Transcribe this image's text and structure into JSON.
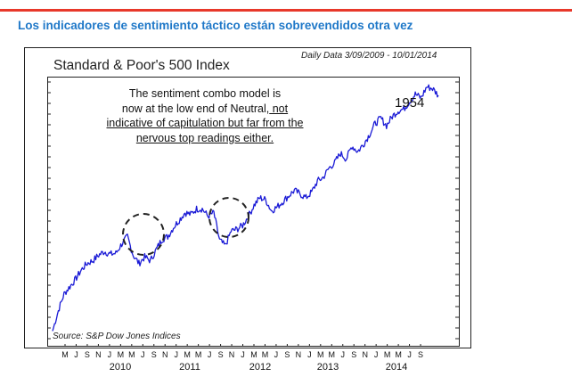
{
  "slide": {
    "title": "Los indicadores de sentimiento táctico están sobrevendidos otra vez"
  },
  "colors": {
    "accent_red": "#e8382a",
    "title_blue": "#1f78c8",
    "series_blue": "#1a1ad6"
  },
  "chart_data": {
    "type": "line",
    "title": "Standard & Poor's 500 Index",
    "subtitle": "Daily Data 3/09/2009 - 10/01/2014",
    "source": "Source: S&P Dow Jones Indices",
    "annotation": {
      "line1": "The sentiment combo model is",
      "line2_plain": "now at the low end of Neutral,",
      "line2_underlined": " not",
      "line3": "indicative of capitulation but far from the",
      "line4": "nervous top readings either."
    },
    "last_value_label": "1954",
    "x_tick_labels": [
      "M",
      "J",
      "S",
      "N",
      "J",
      "M",
      "M",
      "J",
      "S",
      "N",
      "J",
      "M",
      "M",
      "J",
      "S",
      "N",
      "J",
      "M",
      "M",
      "J",
      "S",
      "N",
      "J",
      "M",
      "M",
      "J",
      "S",
      "N",
      "J",
      "M",
      "M",
      "J",
      "S"
    ],
    "year_labels": [
      "2010",
      "2011",
      "2012",
      "2013",
      "2014"
    ],
    "ylim": [
      600,
      2050
    ],
    "series": [
      {
        "name": "S&P 500",
        "x": [
          "2009-03",
          "2009-04",
          "2009-05",
          "2009-06",
          "2009-07",
          "2009-08",
          "2009-09",
          "2009-10",
          "2009-11",
          "2009-12",
          "2010-01",
          "2010-02",
          "2010-03",
          "2010-04",
          "2010-05",
          "2010-06",
          "2010-07",
          "2010-08",
          "2010-09",
          "2010-10",
          "2010-11",
          "2010-12",
          "2011-01",
          "2011-02",
          "2011-03",
          "2011-04",
          "2011-05",
          "2011-06",
          "2011-07",
          "2011-08",
          "2011-09",
          "2011-10",
          "2011-11",
          "2011-12",
          "2012-01",
          "2012-02",
          "2012-03",
          "2012-04",
          "2012-05",
          "2012-06",
          "2012-07",
          "2012-08",
          "2012-09",
          "2012-10",
          "2012-11",
          "2012-12",
          "2013-01",
          "2013-02",
          "2013-03",
          "2013-04",
          "2013-05",
          "2013-06",
          "2013-07",
          "2013-08",
          "2013-09",
          "2013-10",
          "2013-11",
          "2013-12",
          "2014-01",
          "2014-02",
          "2014-03",
          "2014-04",
          "2014-05",
          "2014-06",
          "2014-07",
          "2014-08",
          "2014-09",
          "2014-10"
        ],
        "values": [
          680,
          790,
          880,
          920,
          960,
          1010,
          1045,
          1060,
          1090,
          1110,
          1095,
          1100,
          1150,
          1190,
          1090,
          1045,
          1080,
          1060,
          1120,
          1175,
          1190,
          1240,
          1280,
          1320,
          1310,
          1340,
          1340,
          1300,
          1320,
          1170,
          1140,
          1220,
          1230,
          1250,
          1300,
          1360,
          1400,
          1390,
          1330,
          1350,
          1380,
          1410,
          1440,
          1420,
          1400,
          1430,
          1490,
          1510,
          1560,
          1590,
          1640,
          1610,
          1680,
          1650,
          1690,
          1740,
          1800,
          1830,
          1790,
          1840,
          1870,
          1880,
          1920,
          1960,
          1940,
          2000,
          1990,
          1954
        ]
      }
    ],
    "highlights": [
      "2010 mid-year correction",
      "2011 late-summer correction"
    ]
  }
}
